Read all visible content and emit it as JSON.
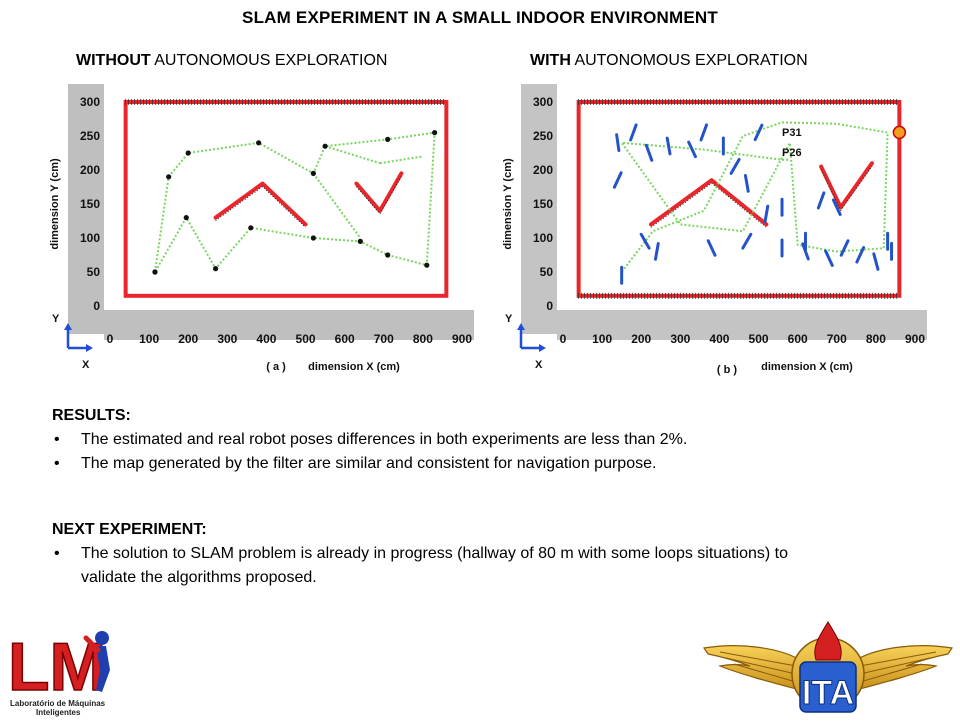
{
  "slide": {
    "title": "SLAM EXPERIMENT IN A SMALL INDOOR ENVIRONMENT"
  },
  "panel_a": {
    "heading_bold": "WITHOUT",
    "heading_rest": "AUTONOMOUS EXPLORATION",
    "label": "( a )"
  },
  "panel_b": {
    "heading_bold": "WITH",
    "heading_rest": "AUTONOMOUS EXPLORATION",
    "label": "( b )",
    "pose_labels": [
      "P31",
      "P26"
    ]
  },
  "results": {
    "heading": "RESULTS:",
    "bullets": [
      "The estimated and real robot poses differences in both experiments are less than 2%.",
      "The map generated by the filter are similar and consistent for navigation purpose."
    ]
  },
  "next": {
    "heading": "NEXT EXPERIMENT:",
    "bullets": [
      "The solution to SLAM problem is already  in progress (hallway of 80 m with some loops situations) to validate the algorithms proposed."
    ]
  },
  "logos": {
    "lm_letters": "LM",
    "lm_caption_1": "Laboratório de Máquinas",
    "lm_caption_2": "Inteligentes",
    "ita_letters": "ITA"
  },
  "chart_data": [
    {
      "type": "scatter",
      "panel": "a",
      "xlabel": "dimension X (cm)",
      "ylabel": "dimension Y (cm)",
      "x_axis_letter": "X",
      "y_axis_letter": "Y",
      "x_ticks": [
        0,
        100,
        200,
        300,
        400,
        500,
        600,
        700,
        800,
        900
      ],
      "y_ticks": [
        0,
        50,
        100,
        150,
        200,
        250,
        300
      ],
      "xlim": [
        0,
        900
      ],
      "ylim": [
        0,
        300
      ],
      "colors": {
        "walls": "#e8262b",
        "path": "#78d65f",
        "poses": "#111111",
        "grid_bg": "#ffffff",
        "frame_bg": "#bfbfbf",
        "axis_arrow": "#1f4fd8"
      },
      "path": [
        [
          115,
          50
        ],
        [
          150,
          190
        ],
        [
          200,
          225
        ],
        [
          380,
          240
        ],
        [
          520,
          195
        ],
        [
          550,
          235
        ],
        [
          710,
          245
        ],
        [
          830,
          255
        ],
        [
          810,
          60
        ],
        [
          710,
          75
        ],
        [
          640,
          95
        ],
        [
          520,
          100
        ],
        [
          360,
          115
        ],
        [
          270,
          55
        ],
        [
          195,
          130
        ],
        [
          115,
          50
        ]
      ],
      "loop_links": [
        [
          [
            550,
            235
          ],
          [
            690,
            210
          ]
        ],
        [
          [
            690,
            210
          ],
          [
            800,
            220
          ]
        ],
        [
          [
            520,
            195
          ],
          [
            640,
            100
          ]
        ]
      ],
      "walls": [
        [
          [
            270,
            130
          ],
          [
            390,
            180
          ],
          [
            500,
            120
          ]
        ],
        [
          [
            630,
            180
          ],
          [
            690,
            140
          ],
          [
            745,
            195
          ]
        ]
      ]
    },
    {
      "type": "scatter",
      "panel": "b",
      "xlabel": "dimension X (cm)",
      "ylabel": "dimension Y (cm)",
      "x_axis_letter": "X",
      "y_axis_letter": "Y",
      "x_ticks": [
        0,
        100,
        200,
        300,
        400,
        500,
        600,
        700,
        800,
        900
      ],
      "y_ticks": [
        0,
        50,
        100,
        150,
        200,
        250,
        300
      ],
      "xlim": [
        0,
        900
      ],
      "ylim": [
        0,
        300
      ],
      "colors": {
        "walls": "#e8262b",
        "path": "#78d65f",
        "landmarks": "#2453c9",
        "robot": "#f0a020"
      },
      "path": [
        [
          150,
          50
        ],
        [
          230,
          110
        ],
        [
          360,
          140
        ],
        [
          460,
          250
        ],
        [
          560,
          270
        ],
        [
          700,
          268
        ],
        [
          830,
          255
        ],
        [
          820,
          85
        ],
        [
          700,
          80
        ],
        [
          600,
          90
        ],
        [
          580,
          240
        ],
        [
          460,
          110
        ],
        [
          300,
          120
        ],
        [
          150,
          240
        ],
        [
          360,
          230
        ],
        [
          560,
          215
        ],
        [
          580,
          215
        ]
      ],
      "walls": [
        [
          [
            225,
            120
          ],
          [
            380,
            185
          ],
          [
            520,
            120
          ]
        ],
        [
          [
            660,
            205
          ],
          [
            710,
            145
          ],
          [
            790,
            210
          ]
        ]
      ]
    }
  ]
}
